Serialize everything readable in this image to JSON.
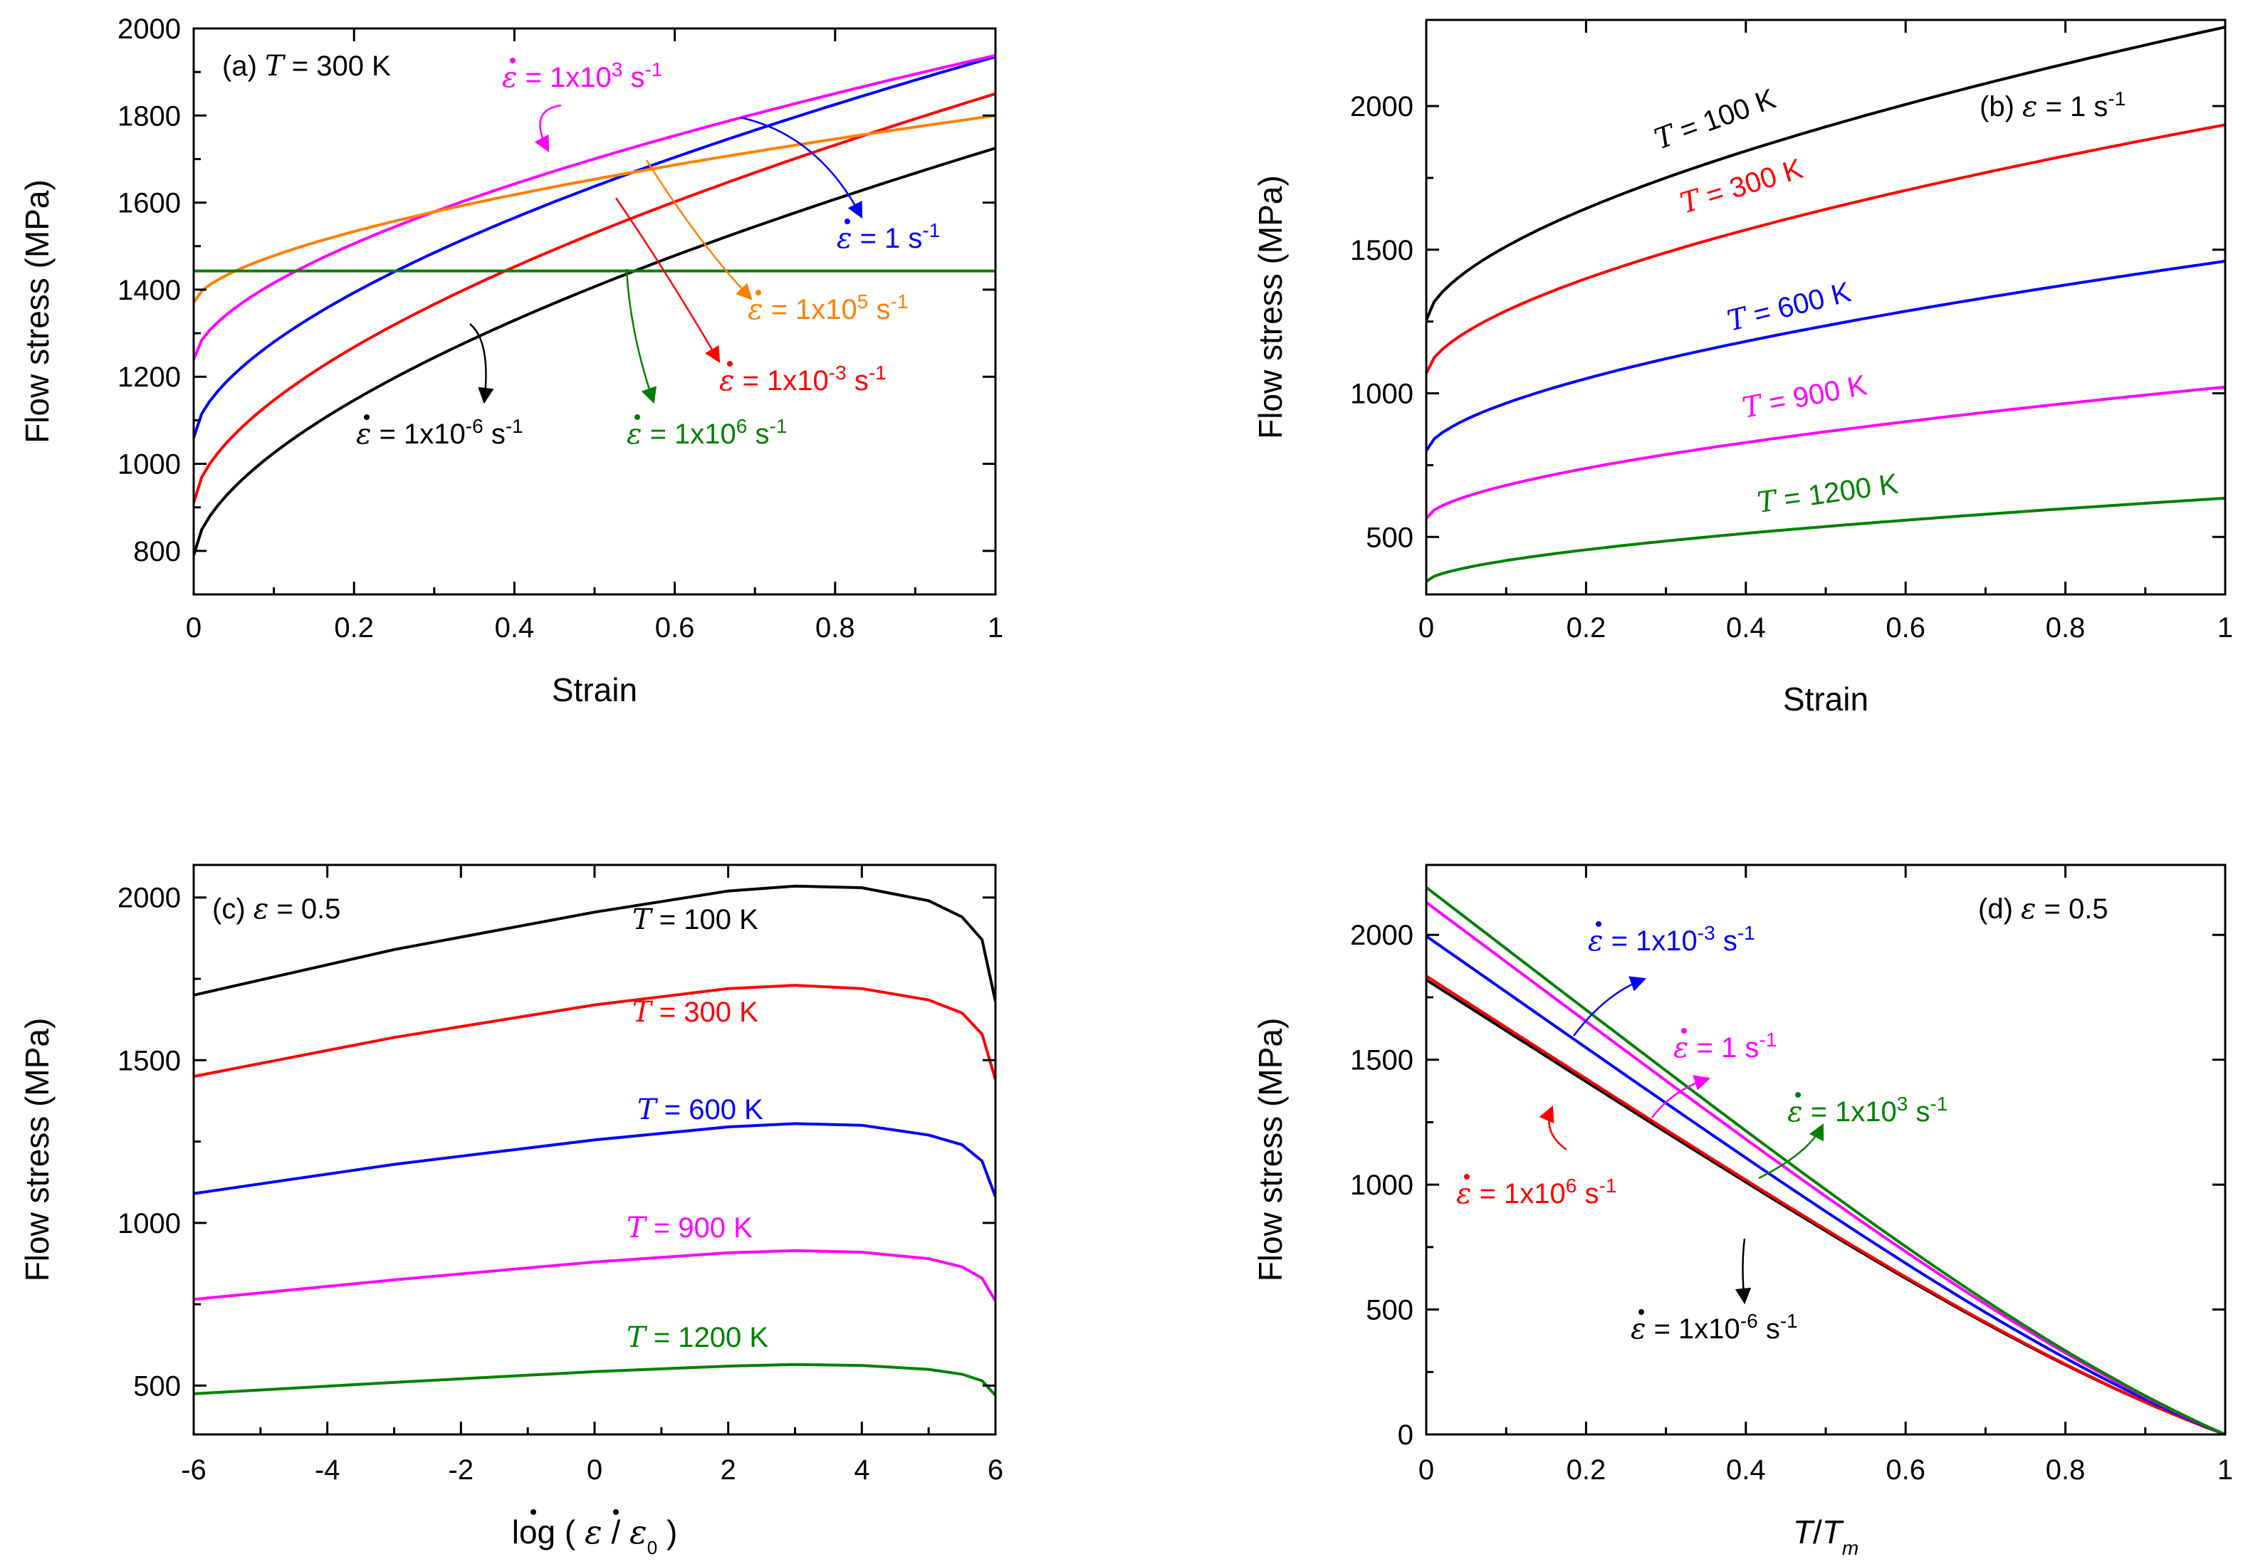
{
  "chart_data": [
    {
      "id": "a",
      "type": "line",
      "panel_label": "(a)",
      "condition": {
        "symbol": "T",
        "text": " = 300 K"
      },
      "xlabel": "Strain",
      "ylabel": "Flow stress (MPa)",
      "xlim": [
        0,
        1
      ],
      "ylim": [
        700,
        2000
      ],
      "xticks": [
        0,
        0.2,
        0.4,
        0.6,
        0.8,
        1
      ],
      "xtick_labels": [
        "0",
        "0.2",
        "0.4",
        "0.6",
        "0.8",
        "1"
      ],
      "yticks": [
        800,
        1000,
        1200,
        1400,
        1600,
        1800,
        2000
      ],
      "ytick_labels": [
        "800",
        "1000",
        "1200",
        "1400",
        "1600",
        "1800",
        "2000"
      ],
      "series": [
        {
          "name": "1x10^-6 s^-1",
          "color": "#000000",
          "y0": 790,
          "y1": 1725
        },
        {
          "name": "1x10^-3 s^-1",
          "color": "#ff0000",
          "y0": 910,
          "y1": 1850
        },
        {
          "name": "1 s^-1",
          "color": "#0000ff",
          "y0": 1060,
          "y1": 1935
        },
        {
          "name": "1x10^3 s^-1",
          "color": "#ff00ff",
          "y0": 1240,
          "y1": 1938
        },
        {
          "name": "1x10^5 s^-1",
          "color": "#ff8000",
          "y0": 1370,
          "y1": 1800
        },
        {
          "name": "1x10^6 s^-1",
          "color": "#008000",
          "y0": 1443,
          "y1": 1443,
          "flat": true
        }
      ],
      "annotations": [
        {
          "sym": "ε",
          "dot": true,
          "pre": "= 1x10",
          "sup": "3",
          "post": " s",
          "sup2": "-1",
          "color": "#ff00ff"
        },
        {
          "sym": "ε",
          "dot": true,
          "pre": "= 1 s",
          "sup": "-1",
          "post": "",
          "sup2": "",
          "color": "#0000ff"
        },
        {
          "sym": "ε",
          "dot": true,
          "pre": "= 1x10",
          "sup": "5",
          "post": " s",
          "sup2": "-1",
          "color": "#ff8000"
        },
        {
          "sym": "ε",
          "dot": true,
          "pre": "= 1x10",
          "sup": "-3",
          "post": " s",
          "sup2": "-1",
          "color": "#ff0000"
        },
        {
          "sym": "ε",
          "dot": true,
          "pre": "= 1x10",
          "sup": "-6",
          "post": " s",
          "sup2": "-1",
          "color": "#000000"
        },
        {
          "sym": "ε",
          "dot": true,
          "pre": "= 1x10",
          "sup": "6",
          "post": " s",
          "sup2": "-1",
          "color": "#008000"
        }
      ]
    },
    {
      "id": "b",
      "type": "line",
      "panel_label": "(b)",
      "condition": {
        "symbol": "ε",
        "dot": true,
        "text": " = 1 s",
        "sup": "-1"
      },
      "xlabel": "Strain",
      "ylabel": "Flow stress (MPa)",
      "xlim": [
        0,
        1
      ],
      "ylim": [
        300,
        2300
      ],
      "xticks": [
        0,
        0.2,
        0.4,
        0.6,
        0.8,
        1
      ],
      "xtick_labels": [
        "0",
        "0.2",
        "0.4",
        "0.6",
        "0.8",
        "1"
      ],
      "yticks": [
        500,
        1000,
        1500,
        2000
      ],
      "ytick_labels": [
        "500",
        "1000",
        "1500",
        "2000"
      ],
      "series": [
        {
          "name": "T = 100 K",
          "color": "#000000",
          "y0": 1255,
          "y1": 2275
        },
        {
          "name": "T = 300 K",
          "color": "#ff0000",
          "y0": 1070,
          "y1": 1935
        },
        {
          "name": "T = 600 K",
          "color": "#0000ff",
          "y0": 800,
          "y1": 1460
        },
        {
          "name": "T = 900 K",
          "color": "#ff00ff",
          "y0": 565,
          "y1": 1022
        },
        {
          "name": "T = 1200 K",
          "color": "#008000",
          "y0": 345,
          "y1": 635
        }
      ],
      "annotations": [
        {
          "sym": "T",
          "text": " = 100 K",
          "color": "#000000"
        },
        {
          "sym": "T",
          "text": " = 300 K",
          "color": "#ff0000"
        },
        {
          "sym": "T",
          "text": " = 600 K",
          "color": "#0000ff"
        },
        {
          "sym": "T",
          "text": " = 900 K",
          "color": "#ff00ff"
        },
        {
          "sym": "T",
          "text": " = 1200 K",
          "color": "#008000"
        }
      ]
    },
    {
      "id": "c",
      "type": "line",
      "panel_label": "(c)",
      "condition": {
        "symbol": "ε",
        "text": " = 0.5"
      },
      "xlabel_parts": [
        "log (",
        "ε",
        "/",
        "ε",
        "0",
        ")"
      ],
      "ylabel": "Flow stress (MPa)",
      "xlim": [
        -6,
        6
      ],
      "ylim": [
        350,
        2100
      ],
      "xticks": [
        -6,
        -4,
        -2,
        0,
        2,
        4,
        6
      ],
      "xtick_labels": [
        "-6",
        "-4",
        "-2",
        "0",
        "2",
        "4",
        "6"
      ],
      "yticks": [
        500,
        1000,
        1500,
        2000
      ],
      "ytick_labels": [
        "500",
        "1000",
        "1500",
        "2000"
      ],
      "series": [
        {
          "name": "T = 100 K",
          "color": "#000000",
          "points": [
            [
              -6,
              1700
            ],
            [
              -3,
              1840
            ],
            [
              0,
              1955
            ],
            [
              2,
              2020
            ],
            [
              3,
              2035
            ],
            [
              4,
              2030
            ],
            [
              5,
              1990
            ],
            [
              5.5,
              1940
            ],
            [
              5.8,
              1870
            ],
            [
              6,
              1680
            ]
          ]
        },
        {
          "name": "T = 300 K",
          "color": "#ff0000",
          "points": [
            [
              -6,
              1450
            ],
            [
              -3,
              1570
            ],
            [
              0,
              1670
            ],
            [
              2,
              1720
            ],
            [
              3,
              1730
            ],
            [
              4,
              1720
            ],
            [
              5,
              1685
            ],
            [
              5.5,
              1645
            ],
            [
              5.8,
              1580
            ],
            [
              6,
              1440
            ]
          ]
        },
        {
          "name": "T = 600 K",
          "color": "#0000ff",
          "points": [
            [
              -6,
              1090
            ],
            [
              -3,
              1180
            ],
            [
              0,
              1255
            ],
            [
              2,
              1295
            ],
            [
              3,
              1305
            ],
            [
              4,
              1300
            ],
            [
              5,
              1270
            ],
            [
              5.5,
              1240
            ],
            [
              5.8,
              1190
            ],
            [
              6,
              1080
            ]
          ]
        },
        {
          "name": "T = 900 K",
          "color": "#ff00ff",
          "points": [
            [
              -6,
              765
            ],
            [
              -3,
              825
            ],
            [
              0,
              880
            ],
            [
              2,
              908
            ],
            [
              3,
              915
            ],
            [
              4,
              910
            ],
            [
              5,
              890
            ],
            [
              5.5,
              865
            ],
            [
              5.8,
              830
            ],
            [
              6,
              760
            ]
          ]
        },
        {
          "name": "T = 1200 K",
          "color": "#008000",
          "points": [
            [
              -6,
              475
            ],
            [
              -3,
              510
            ],
            [
              0,
              543
            ],
            [
              2,
              560
            ],
            [
              3,
              565
            ],
            [
              4,
              562
            ],
            [
              5,
              550
            ],
            [
              5.5,
              535
            ],
            [
              5.8,
              515
            ],
            [
              6,
              470
            ]
          ]
        }
      ],
      "annotations": [
        {
          "sym": "T",
          "text": " = 100 K",
          "color": "#000000"
        },
        {
          "sym": "T",
          "text": " = 300 K",
          "color": "#ff0000"
        },
        {
          "sym": "T",
          "text": " = 600 K",
          "color": "#0000ff"
        },
        {
          "sym": "T",
          "text": " = 900 K",
          "color": "#ff00ff"
        },
        {
          "sym": "T",
          "text": " = 1200 K",
          "color": "#008000"
        }
      ]
    },
    {
      "id": "d",
      "type": "line",
      "panel_label": "(d)",
      "condition": {
        "symbol": "ε",
        "text": " = 0.5"
      },
      "xlabel_parts": [
        "T",
        "/",
        "T",
        "m"
      ],
      "ylabel": "Flow stress (MPa)",
      "xlim": [
        0,
        1
      ],
      "ylim": [
        0,
        2280
      ],
      "xticks": [
        0,
        0.2,
        0.4,
        0.6,
        0.8,
        1
      ],
      "xtick_labels": [
        "0",
        "0.2",
        "0.4",
        "0.6",
        "0.8",
        "1"
      ],
      "yticks": [
        0,
        500,
        1000,
        1500,
        2000
      ],
      "ytick_labels": [
        "0",
        "500",
        "1000",
        "1500",
        "2000"
      ],
      "series": [
        {
          "name": "1x10^-6 s^-1",
          "color": "#000000",
          "y0": 1820
        },
        {
          "name": "1x10^6 s^-1",
          "color": "#ff0000",
          "y0": 1835
        },
        {
          "name": "1x10^-3 s^-1",
          "color": "#0000ff",
          "y0": 1995
        },
        {
          "name": "1 s^-1",
          "color": "#ff00ff",
          "y0": 2130
        },
        {
          "name": "1x10^3 s^-1",
          "color": "#008000",
          "y0": 2190
        }
      ],
      "annotations": [
        {
          "sym": "ε",
          "dot": true,
          "pre": "= 1x10",
          "sup": "-3",
          "post": " s",
          "sup2": "-1",
          "color": "#0000ff"
        },
        {
          "sym": "ε",
          "dot": true,
          "pre": "= 1 s",
          "sup": "-1",
          "post": "",
          "sup2": "",
          "color": "#ff00ff"
        },
        {
          "sym": "ε",
          "dot": true,
          "pre": "= 1x10",
          "sup": "3",
          "post": " s",
          "sup2": "-1",
          "color": "#008000"
        },
        {
          "sym": "ε",
          "dot": true,
          "pre": "= 1x10",
          "sup": "6",
          "post": " s",
          "sup2": "-1",
          "color": "#ff0000"
        },
        {
          "sym": "ε",
          "dot": true,
          "pre": "= 1x10",
          "sup": "-6",
          "post": " s",
          "sup2": "-1",
          "color": "#000000"
        }
      ]
    }
  ]
}
